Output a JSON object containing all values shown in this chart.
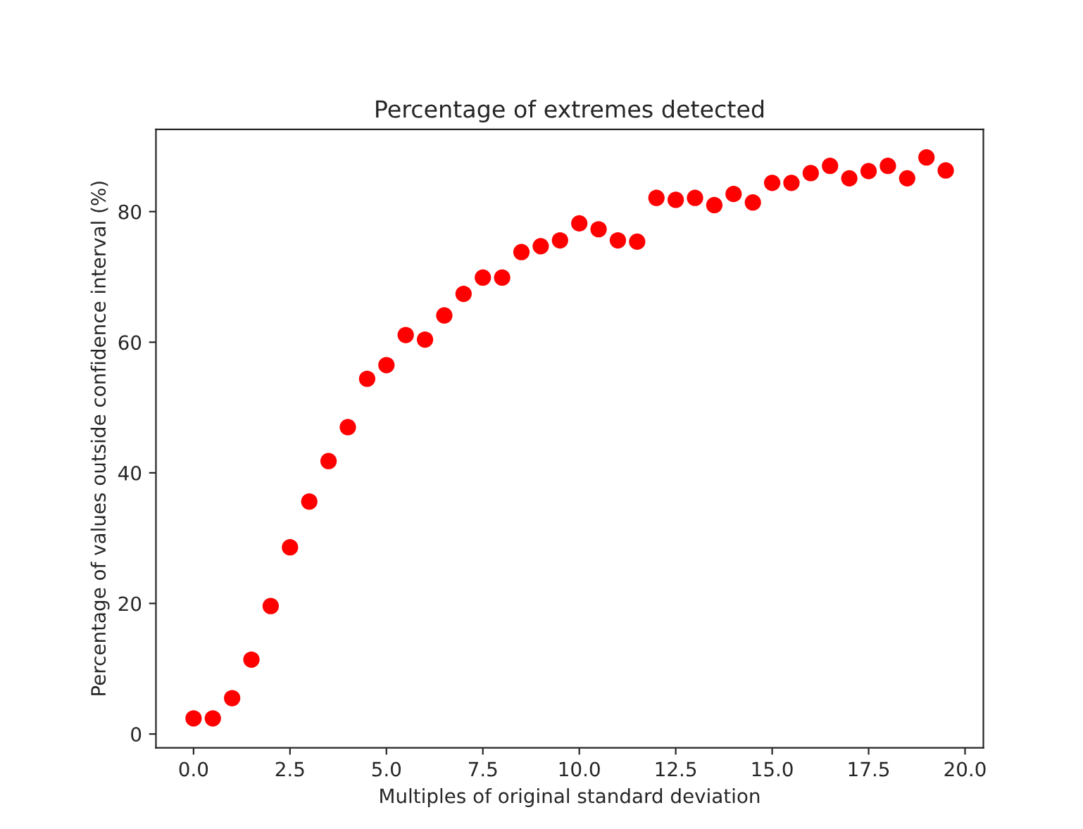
{
  "chart_data": {
    "type": "scatter",
    "title": "Percentage of extremes detected",
    "xlabel": "Multiples of original standard deviation",
    "ylabel": "Percentage of values outside confidence interval (%)",
    "x": [
      0,
      0.5,
      1,
      1.5,
      2,
      2.5,
      3,
      3.5,
      4,
      4.5,
      5,
      5.5,
      6,
      6.5,
      7,
      7.5,
      8,
      8.5,
      9,
      9.5,
      10,
      10.5,
      11,
      11.5,
      12,
      12.5,
      13,
      13.5,
      14,
      14.5,
      15,
      15.5,
      16,
      16.5,
      17,
      17.5,
      18,
      18.5,
      19,
      19.5
    ],
    "series": [
      {
        "color": "#ff0000",
        "values": [
          2.4,
          2.4,
          5.5,
          11.4,
          19.6,
          28.6,
          35.6,
          41.8,
          47.0,
          54.4,
          56.5,
          61.1,
          60.4,
          64.1,
          67.4,
          69.9,
          69.9,
          73.8,
          74.7,
          75.6,
          78.2,
          77.3,
          75.6,
          75.4,
          82.1,
          81.8,
          82.1,
          81.0,
          82.7,
          81.4,
          84.4,
          84.4,
          85.9,
          87.0,
          85.1,
          86.2,
          87.0,
          85.1,
          88.3,
          86.3
        ]
      }
    ],
    "xlim": [
      -0.975,
      20.475
    ],
    "ylim": [
      -2.1,
      92.6
    ],
    "xticks": [
      {
        "value": 0,
        "label": "0.0"
      },
      {
        "value": 2.5,
        "label": "2.5"
      },
      {
        "value": 5,
        "label": "5.0"
      },
      {
        "value": 7.5,
        "label": "7.5"
      },
      {
        "value": 10,
        "label": "10.0"
      },
      {
        "value": 12.5,
        "label": "12.5"
      },
      {
        "value": 15,
        "label": "15.0"
      },
      {
        "value": 17.5,
        "label": "17.5"
      },
      {
        "value": 20,
        "label": "20.0"
      }
    ],
    "yticks": [
      0,
      20,
      40,
      60,
      80
    ],
    "marker": "circle",
    "grid": false
  }
}
